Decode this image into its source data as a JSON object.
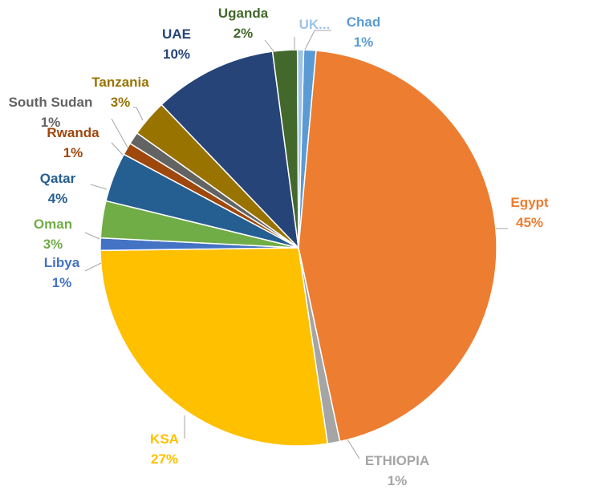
{
  "chart_data": {
    "type": "pie",
    "title": "",
    "slices": [
      {
        "label": "Chad",
        "value": 1,
        "value_label": "1%",
        "color": "#5B9BD5",
        "label_color": "#5B9BD5"
      },
      {
        "label": "Egypt",
        "value": 45,
        "value_label": "45%",
        "color": "#ED7D31",
        "label_color": "#ED7D31"
      },
      {
        "label": "ETHIOPIA",
        "value": 1,
        "value_label": "1%",
        "color": "#A5A5A5",
        "label_color": "#A5A5A5"
      },
      {
        "label": "KSA",
        "value": 27,
        "value_label": "27%",
        "color": "#FFC000",
        "label_color": "#FFC000"
      },
      {
        "label": "Libya",
        "value": 1,
        "value_label": "1%",
        "color": "#4472C4",
        "label_color": "#4472C4"
      },
      {
        "label": "Oman",
        "value": 3,
        "value_label": "3%",
        "color": "#70AD47",
        "label_color": "#70AD47"
      },
      {
        "label": "Qatar",
        "value": 4,
        "value_label": "4%",
        "color": "#255E91",
        "label_color": "#255E91"
      },
      {
        "label": "Rwanda",
        "value": 1,
        "value_label": "1%",
        "color": "#9E480E",
        "label_color": "#9E480E"
      },
      {
        "label": "South Sudan",
        "value": 1,
        "value_label": "1%",
        "color": "#636363",
        "label_color": "#636363"
      },
      {
        "label": "Tanzania",
        "value": 3,
        "value_label": "3%",
        "color": "#997300",
        "label_color": "#997300"
      },
      {
        "label": "UAE",
        "value": 10,
        "value_label": "10%",
        "color": "#264478",
        "label_color": "#264478"
      },
      {
        "label": "Uganda",
        "value": 2,
        "value_label": "2%",
        "color": "#43682B",
        "label_color": "#43682B"
      },
      {
        "label": "UK...",
        "value": 0.5,
        "value_label": "",
        "color": "#9DC3E6",
        "label_color": "#9DC3E6"
      }
    ]
  }
}
